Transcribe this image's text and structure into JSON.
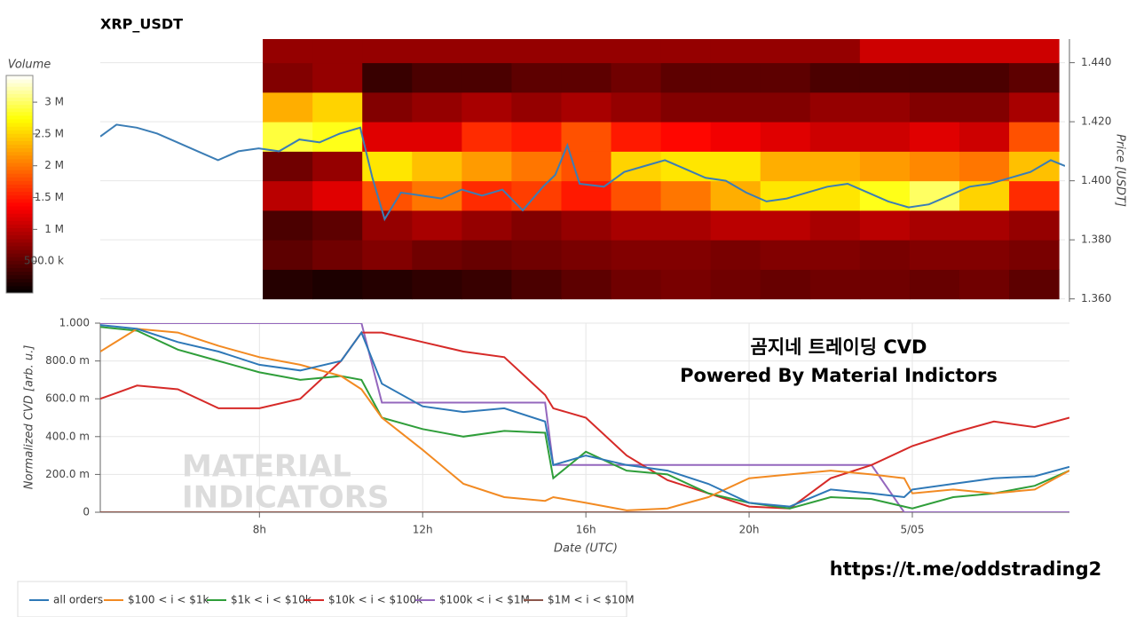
{
  "chart_data": [
    {
      "type": "heatmap",
      "title": "XRP_USDT",
      "ylabel": "Price [USDT]",
      "colorbar_label": "Volume",
      "colormap": "hot",
      "xlim": [
        4.1,
        27.85
      ],
      "ylim": [
        1.359,
        1.448
      ],
      "yticks": [
        {
          "value": 1.36,
          "label": "1.360"
        },
        {
          "value": 1.38,
          "label": "1.380"
        },
        {
          "value": 1.4,
          "label": "1.400"
        },
        {
          "value": 1.42,
          "label": "1.420"
        },
        {
          "value": 1.44,
          "label": "1.440"
        }
      ],
      "grid": true,
      "zlim": [
        0,
        3420000
      ],
      "zticks": [
        {
          "value": 500000,
          "label": "500.0 k"
        },
        {
          "value": 1000000,
          "label": "1 M"
        },
        {
          "value": 1500000,
          "label": "1.5 M"
        },
        {
          "value": 2000000,
          "label": "2 M"
        },
        {
          "value": 2500000,
          "label": "2.5 M"
        },
        {
          "value": 3000000,
          "label": "3 M"
        }
      ],
      "time_bins": [
        8.1,
        9.325,
        10.55,
        11.775,
        13.0,
        14.225,
        15.45,
        16.675,
        17.9,
        19.125,
        20.35,
        21.575,
        22.8,
        24.025,
        25.25,
        26.475,
        27.7
      ],
      "price_bins": [
        1.36,
        1.37,
        1.38,
        1.39,
        1.4,
        1.41,
        1.42,
        1.43,
        1.44,
        1.45
      ],
      "volume": [
        [
          200000,
          150000,
          200000,
          250000,
          300000,
          400000,
          500000,
          600000,
          650000,
          600000,
          550000,
          600000,
          600000,
          550000,
          600000,
          500000
        ],
        [
          500000,
          600000,
          700000,
          600000,
          550000,
          600000,
          650000,
          700000,
          700000,
          650000,
          700000,
          700000,
          650000,
          700000,
          700000,
          650000
        ],
        [
          400000,
          500000,
          800000,
          900000,
          800000,
          700000,
          800000,
          900000,
          900000,
          1000000,
          1000000,
          900000,
          1000000,
          900000,
          900000,
          800000
        ],
        [
          1000000,
          1200000,
          1800000,
          2000000,
          1600000,
          1700000,
          1500000,
          1800000,
          2000000,
          2300000,
          2600000,
          2600000,
          2800000,
          3000000,
          2500000,
          1600000
        ],
        [
          600000,
          800000,
          2600000,
          2400000,
          2200000,
          2000000,
          1800000,
          2500000,
          2600000,
          2600000,
          2300000,
          2300000,
          2200000,
          2100000,
          2000000,
          2400000
        ],
        [
          2900000,
          2800000,
          1200000,
          1200000,
          1600000,
          1500000,
          1800000,
          1500000,
          1400000,
          1300000,
          1200000,
          1100000,
          1100000,
          1200000,
          1100000,
          1800000
        ],
        [
          2300000,
          2500000,
          700000,
          800000,
          900000,
          800000,
          900000,
          800000,
          700000,
          700000,
          700000,
          800000,
          800000,
          700000,
          700000,
          900000
        ],
        [
          700000,
          800000,
          300000,
          400000,
          400000,
          500000,
          500000,
          600000,
          500000,
          500000,
          500000,
          400000,
          400000,
          400000,
          400000,
          500000
        ],
        [
          800000,
          800000,
          800000,
          800000,
          800000,
          800000,
          800000,
          800000,
          800000,
          800000,
          800000,
          800000,
          1100000,
          1100000,
          1100000,
          1100000
        ]
      ],
      "price": {
        "color": "#3b7db5",
        "x": [
          4.1,
          4.5,
          5,
          5.5,
          6,
          6.5,
          7,
          7.5,
          8,
          8.5,
          9,
          9.5,
          10,
          10.5,
          10.8,
          11.1,
          11.5,
          12,
          12.5,
          13,
          13.5,
          14,
          14.5,
          15,
          15.3,
          15.6,
          15.9,
          16.5,
          17,
          17.5,
          18,
          18.5,
          19,
          19.5,
          20,
          20.5,
          21,
          21.5,
          22,
          22.5,
          23,
          23.5,
          24,
          24.5,
          25,
          25.5,
          26,
          26.5,
          27,
          27.5,
          27.85
        ],
        "values": [
          1.415,
          1.419,
          1.418,
          1.416,
          1.413,
          1.41,
          1.407,
          1.41,
          1.411,
          1.41,
          1.414,
          1.413,
          1.416,
          1.418,
          1.401,
          1.387,
          1.396,
          1.395,
          1.394,
          1.397,
          1.395,
          1.397,
          1.39,
          1.398,
          1.402,
          1.412,
          1.399,
          1.398,
          1.403,
          1.405,
          1.407,
          1.404,
          1.401,
          1.4,
          1.396,
          1.393,
          1.394,
          1.396,
          1.398,
          1.399,
          1.396,
          1.393,
          1.391,
          1.392,
          1.395,
          1.398,
          1.399,
          1.401,
          1.403,
          1.407,
          1.405
        ]
      }
    },
    {
      "type": "line",
      "xlabel": "Date (UTC)",
      "ylabel": "Normalized CVD [arb. u.]",
      "xlim": [
        4.1,
        27.85
      ],
      "ylim": [
        0,
        1
      ],
      "xticks": [
        {
          "value": 8,
          "label": "8h"
        },
        {
          "value": 12,
          "label": "12h"
        },
        {
          "value": 16,
          "label": "16h"
        },
        {
          "value": 20,
          "label": "20h"
        },
        {
          "value": 24,
          "label": "5/05"
        }
      ],
      "yticks": [
        0,
        {
          "value": 0.2,
          "label": "200.0 m"
        },
        {
          "value": 0.4,
          "label": "400.0 m"
        },
        {
          "value": 0.6,
          "label": "600.0 m"
        },
        {
          "value": 0.8,
          "label": "800.0 m"
        },
        {
          "value": 1,
          "label": "1.000"
        }
      ],
      "grid": true,
      "x": [
        4.1,
        5,
        6,
        7,
        8,
        9,
        10,
        10.5,
        11,
        12,
        13,
        14,
        15,
        15.2,
        16,
        17,
        18,
        19,
        20,
        21,
        22,
        23,
        23.8,
        24,
        25,
        26,
        27,
        27.85
      ],
      "series": [
        {
          "name": "all orders",
          "color": "#2e78b7",
          "values": [
            0.99,
            0.97,
            0.9,
            0.85,
            0.78,
            0.75,
            0.8,
            0.95,
            0.68,
            0.56,
            0.53,
            0.55,
            0.48,
            0.25,
            0.3,
            0.25,
            0.22,
            0.15,
            0.05,
            0.03,
            0.12,
            0.1,
            0.08,
            0.12,
            0.15,
            0.18,
            0.19,
            0.24
          ]
        },
        {
          "name": "$100 < i < $1k",
          "color": "#f28a22",
          "values": [
            0.85,
            0.97,
            0.95,
            0.88,
            0.82,
            0.78,
            0.72,
            0.65,
            0.5,
            0.33,
            0.15,
            0.08,
            0.06,
            0.08,
            0.05,
            0.01,
            0.02,
            0.08,
            0.18,
            0.2,
            0.22,
            0.2,
            0.18,
            0.1,
            0.12,
            0.1,
            0.12,
            0.22
          ]
        },
        {
          "name": "$1k < i < $10k",
          "color": "#2f9e3a",
          "values": [
            0.98,
            0.96,
            0.86,
            0.8,
            0.74,
            0.7,
            0.72,
            0.7,
            0.5,
            0.44,
            0.4,
            0.43,
            0.42,
            0.18,
            0.32,
            0.22,
            0.2,
            0.1,
            0.05,
            0.02,
            0.08,
            0.07,
            0.03,
            0.02,
            0.08,
            0.1,
            0.14,
            0.22
          ]
        },
        {
          "name": "$10k < i < $100k",
          "color": "#d62a28",
          "values": [
            0.6,
            0.67,
            0.65,
            0.55,
            0.55,
            0.6,
            0.8,
            0.95,
            0.95,
            0.9,
            0.85,
            0.82,
            0.62,
            0.55,
            0.5,
            0.3,
            0.17,
            0.1,
            0.03,
            0.02,
            0.18,
            0.25,
            0.33,
            0.35,
            0.42,
            0.48,
            0.45,
            0.5
          ]
        },
        {
          "name": "$100k < i < $1M",
          "color": "#9467bd",
          "values": [
            1,
            1,
            1,
            1,
            1,
            1,
            1,
            1,
            0.58,
            0.58,
            0.58,
            0.58,
            0.58,
            0.25,
            0.25,
            0.25,
            0.25,
            0.25,
            0.25,
            0.25,
            0.25,
            0.25,
            0,
            0,
            0,
            0,
            0,
            0
          ]
        },
        {
          "name": "$1M < i < $10M",
          "color": "#8c564b",
          "values": [
            0,
            0,
            0,
            0,
            0,
            0,
            0,
            0,
            0,
            0,
            0,
            0,
            0,
            0,
            0,
            0,
            0,
            0,
            0,
            0,
            0,
            0,
            0,
            0,
            0,
            0,
            0,
            0
          ]
        }
      ],
      "watermark": [
        "MATERIAL",
        "INDICATORS"
      ],
      "annotations": [
        "곰지네 트레이딩 CVD",
        "Powered By Material Indictors",
        "https://t.me/oddstrading2"
      ]
    }
  ]
}
